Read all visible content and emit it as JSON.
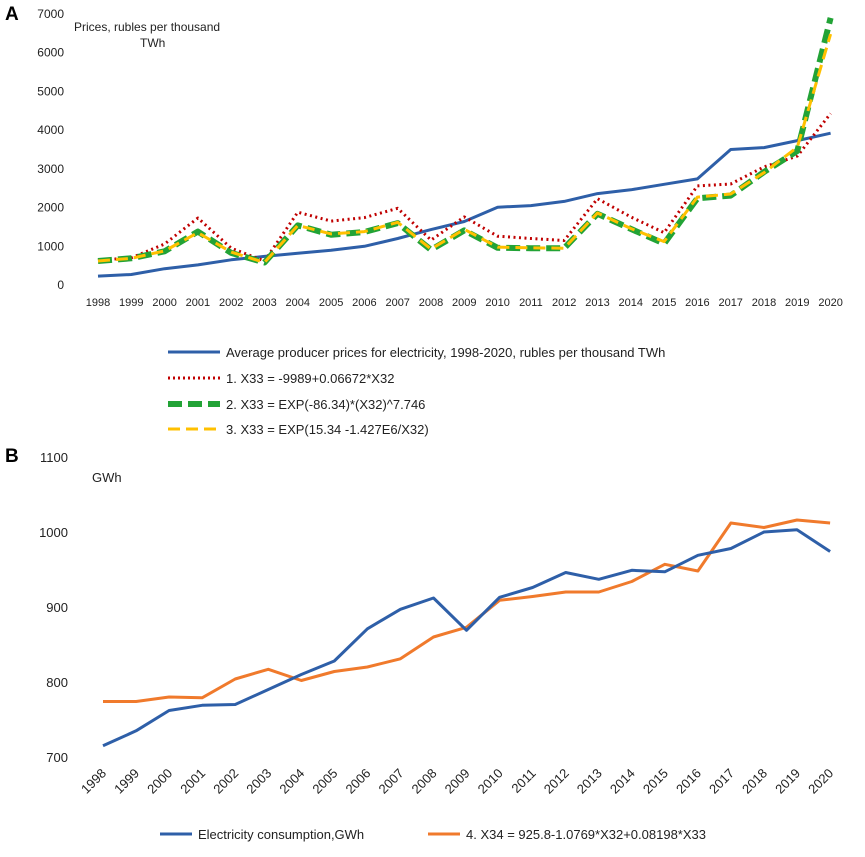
{
  "chart_data": [
    {
      "panel": "A",
      "type": "line",
      "ylabel": "Prices, rubles per thousand TWh",
      "ylabel_line1": "Prices, rubles per thousand",
      "ylabel_line2": "TWh",
      "ylim": [
        0,
        7000
      ],
      "yticks": [
        "0",
        "1000",
        "2000",
        "3000",
        "4000",
        "5000",
        "6000",
        "7000"
      ],
      "x": [
        "1998",
        "1999",
        "2000",
        "2001",
        "2002",
        "2003",
        "2004",
        "2005",
        "2006",
        "2007",
        "2008",
        "2009",
        "2010",
        "2011",
        "2012",
        "2013",
        "2014",
        "2015",
        "2016",
        "2017",
        "2018",
        "2019",
        "2020"
      ],
      "series": [
        {
          "name": "Average producer prices for electricity, 1998-2020, rubles per thousand TWh",
          "color": "#2e5fa8",
          "values": [
            230,
            270,
            420,
            520,
            650,
            740,
            820,
            900,
            1000,
            1200,
            1430,
            1640,
            2010,
            2050,
            2160,
            2360,
            2460,
            2600,
            2740,
            3500,
            3550,
            3730,
            3920
          ]
        },
        {
          "name": "1. X33 = -9989+0.06672*X32",
          "color": "#c00000",
          "values": [
            640,
            700,
            1060,
            1730,
            950,
            620,
            1880,
            1650,
            1740,
            1980,
            1160,
            1760,
            1260,
            1200,
            1150,
            2230,
            1760,
            1350,
            2560,
            2610,
            3050,
            3330,
            4430
          ]
        },
        {
          "name": "2. X33 = EXP(-86.34)*(X32)^7.746",
          "color": "#22a336",
          "values": [
            620,
            690,
            870,
            1380,
            830,
            580,
            1540,
            1300,
            1370,
            1600,
            910,
            1410,
            960,
            950,
            950,
            1840,
            1450,
            1070,
            2240,
            2310,
            2920,
            3460,
            6900
          ]
        },
        {
          "name": "3. X33 = EXP(15.34 -1.427E6/X32)",
          "color": "#ffc000",
          "values": [
            620,
            690,
            880,
            1350,
            850,
            580,
            1540,
            1320,
            1380,
            1620,
            930,
            1440,
            980,
            960,
            950,
            1860,
            1460,
            1120,
            2270,
            2350,
            2900,
            3560,
            6480
          ]
        }
      ]
    },
    {
      "panel": "B",
      "type": "line",
      "ylabel": "GWh",
      "ylim": [
        700,
        1100
      ],
      "yticks": [
        "700",
        "800",
        "900",
        "1000",
        "1100"
      ],
      "x": [
        "1998",
        "1999",
        "2000",
        "2001",
        "2002",
        "2003",
        "2004",
        "2005",
        "2006",
        "2007",
        "2008",
        "2009",
        "2010",
        "2011",
        "2012",
        "2013",
        "2014",
        "2015",
        "2016",
        "2017",
        "2018",
        "2019",
        "2020"
      ],
      "series": [
        {
          "name": "Electricity consumption,GWh",
          "color": "#2e5fa8",
          "values": [
            715,
            735,
            762,
            769,
            770,
            790,
            810,
            828,
            871,
            897,
            912,
            869,
            913,
            926,
            946,
            937,
            949,
            947,
            969,
            978,
            1000,
            1003,
            974
          ]
        },
        {
          "name": "4. X34 = 925.8-1.0769*X32+0.08198*X33",
          "color": "#f07a2c",
          "values": [
            774,
            774,
            780,
            779,
            804,
            817,
            802,
            814,
            820,
            831,
            860,
            873,
            909,
            914,
            920,
            920,
            934,
            957,
            948,
            1012,
            1006,
            1016,
            1012
          ]
        }
      ]
    }
  ]
}
